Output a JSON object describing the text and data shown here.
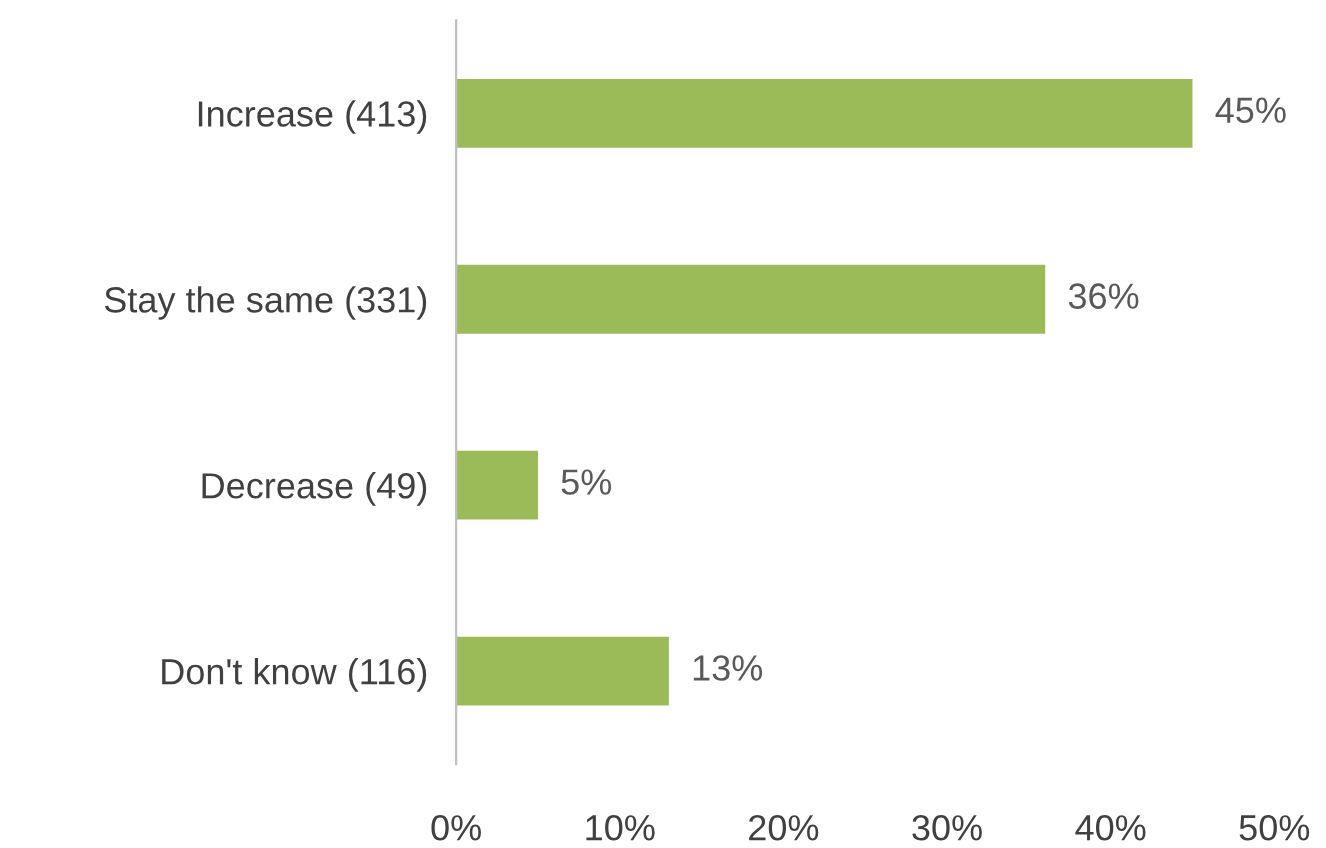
{
  "chart_data": {
    "type": "bar",
    "orientation": "horizontal",
    "categories": [
      "Increase (413)",
      "Stay the same (331)",
      "Decrease (49)",
      "Don't know (116)"
    ],
    "values": [
      45,
      36,
      5,
      13
    ],
    "value_labels": [
      "45%",
      "36%",
      "5%",
      "13%"
    ],
    "color": "#9bbb59",
    "xlim": [
      0,
      50
    ],
    "xticks": [
      {
        "value": 0,
        "label": "0%"
      },
      {
        "value": 10,
        "label": "10%"
      },
      {
        "value": 20,
        "label": "20%"
      },
      {
        "value": 30,
        "label": "30%"
      },
      {
        "value": 40,
        "label": "40%"
      },
      {
        "value": 50,
        "label": "50%"
      }
    ],
    "grid": false,
    "legend": false
  }
}
